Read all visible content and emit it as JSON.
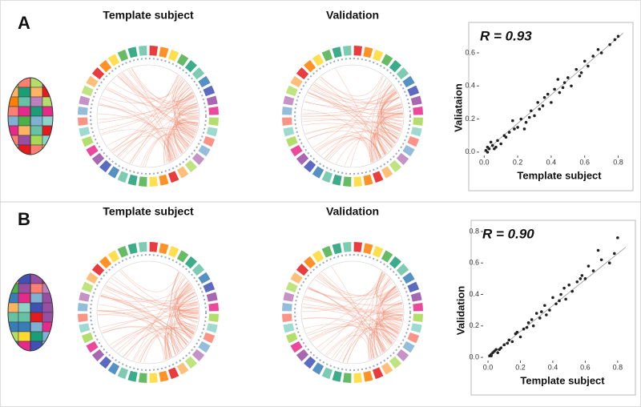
{
  "panels": [
    {
      "label": "A",
      "circos_titles": [
        "Template subject",
        "Validation"
      ]
    },
    {
      "label": "B",
      "circos_titles": [
        "Template subject",
        "Validation"
      ]
    }
  ],
  "chart_data": [
    {
      "type": "scatter",
      "annotation": "R = 0.93",
      "x_label": "Template subject",
      "y_label": "Valiataion",
      "color": "#222222",
      "x": [
        0.01,
        0.02,
        0.03,
        0.05,
        0.04,
        0.08,
        0.1,
        0.12,
        0.06,
        0.15,
        0.18,
        0.2,
        0.22,
        0.25,
        0.28,
        0.3,
        0.32,
        0.35,
        0.38,
        0.4,
        0.42,
        0.45,
        0.48,
        0.5,
        0.52,
        0.55,
        0.58,
        0.6,
        0.62,
        0.65,
        0.7,
        0.75,
        0.78,
        0.8,
        0.02,
        0.07,
        0.13,
        0.17,
        0.24,
        0.33,
        0.44,
        0.36,
        0.27,
        0.47,
        0.57,
        0.68
      ],
      "values": [
        0.01,
        0.03,
        0.02,
        0.04,
        0.06,
        0.07,
        0.05,
        0.1,
        0.02,
        0.12,
        0.14,
        0.15,
        0.2,
        0.18,
        0.25,
        0.22,
        0.3,
        0.28,
        0.35,
        0.3,
        0.38,
        0.36,
        0.42,
        0.45,
        0.4,
        0.5,
        0.48,
        0.55,
        0.52,
        0.58,
        0.6,
        0.65,
        0.68,
        0.7,
        0.0,
        0.03,
        0.09,
        0.19,
        0.14,
        0.26,
        0.44,
        0.33,
        0.21,
        0.39,
        0.46,
        0.62
      ],
      "fit_line": {
        "x": [
          0,
          0.83
        ],
        "values": [
          0,
          0.72
        ]
      },
      "xlim": [
        -0.03,
        0.85
      ],
      "ylim": [
        -0.02,
        0.75
      ],
      "xticks": [
        {
          "value": 0,
          "label": "0.0"
        },
        0.2,
        0.4,
        0.6,
        0.8
      ],
      "yticks": [
        {
          "value": 0,
          "label": "0.0"
        },
        0.2,
        0.4,
        0.6
      ]
    },
    {
      "type": "scatter",
      "annotation": "R = 0.90",
      "x_label": "Template subject",
      "y_label": "Validation",
      "color": "#222222",
      "x": [
        0.01,
        0.02,
        0.03,
        0.05,
        0.04,
        0.08,
        0.1,
        0.12,
        0.06,
        0.15,
        0.18,
        0.2,
        0.22,
        0.25,
        0.28,
        0.3,
        0.32,
        0.35,
        0.38,
        0.4,
        0.42,
        0.45,
        0.48,
        0.5,
        0.52,
        0.55,
        0.58,
        0.6,
        0.62,
        0.65,
        0.7,
        0.75,
        0.78,
        0.8,
        0.02,
        0.07,
        0.13,
        0.17,
        0.24,
        0.33,
        0.44,
        0.36,
        0.27,
        0.47,
        0.57,
        0.68
      ],
      "values": [
        0.01,
        0.02,
        0.03,
        0.05,
        0.04,
        0.06,
        0.08,
        0.09,
        0.03,
        0.1,
        0.16,
        0.13,
        0.18,
        0.22,
        0.2,
        0.28,
        0.25,
        0.33,
        0.3,
        0.38,
        0.34,
        0.4,
        0.37,
        0.46,
        0.42,
        0.48,
        0.52,
        0.5,
        0.58,
        0.55,
        0.62,
        0.6,
        0.66,
        0.76,
        0.01,
        0.05,
        0.11,
        0.15,
        0.19,
        0.29,
        0.36,
        0.27,
        0.24,
        0.44,
        0.5,
        0.68
      ],
      "fit_line": {
        "x": [
          0,
          0.85
        ],
        "values": [
          0,
          0.7
        ]
      },
      "xlim": [
        -0.03,
        0.87
      ],
      "ylim": [
        -0.02,
        0.82
      ],
      "xticks": [
        {
          "value": 0,
          "label": "0.0"
        },
        0.2,
        0.4,
        0.6,
        0.8
      ],
      "yticks": [
        {
          "value": 0,
          "label": "0.0"
        },
        0.2,
        0.4,
        0.6,
        0.8
      ]
    }
  ]
}
